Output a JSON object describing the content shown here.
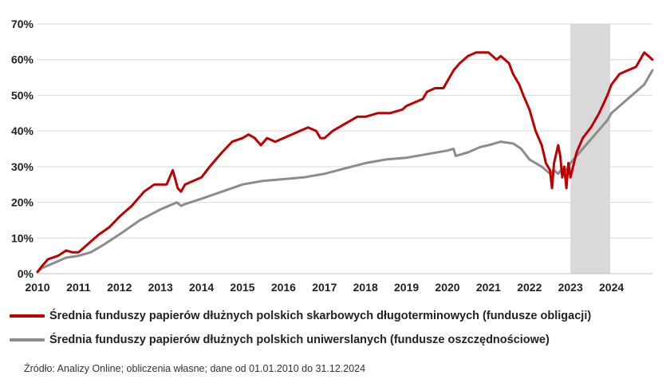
{
  "chart_data": {
    "type": "line",
    "title": "",
    "xlabel": "",
    "ylabel": "",
    "x_ticks": [
      "2010",
      "2011",
      "2012",
      "2013",
      "2014",
      "2015",
      "2016",
      "2017",
      "2018",
      "2019",
      "2020",
      "2021",
      "2022",
      "2023",
      "2024"
    ],
    "y_ticks": [
      "0%",
      "10%",
      "20%",
      "30%",
      "40%",
      "50%",
      "60%",
      "70%"
    ],
    "xlim": [
      2010.0,
      2025.0
    ],
    "ylim": [
      0,
      70
    ],
    "grid": "horizontal",
    "highlight_band": {
      "from": 2023.0,
      "to": 2023.97,
      "color": "#d9d9d9"
    },
    "legend_position": "bottom",
    "series": [
      {
        "name": "Średnia funduszy papierów dłużnych polskich skarbowych długoterminowych (fundusze obligacji)",
        "color": "#c00000",
        "x": [
          2010.0,
          2010.1,
          2010.25,
          2010.5,
          2010.7,
          2010.85,
          2011.0,
          2011.2,
          2011.5,
          2011.75,
          2012.0,
          2012.3,
          2012.6,
          2012.85,
          2013.0,
          2013.15,
          2013.3,
          2013.42,
          2013.5,
          2013.6,
          2013.8,
          2014.0,
          2014.2,
          2014.5,
          2014.75,
          2015.0,
          2015.15,
          2015.3,
          2015.45,
          2015.6,
          2015.8,
          2016.0,
          2016.2,
          2016.4,
          2016.6,
          2016.8,
          2016.9,
          2017.0,
          2017.2,
          2017.5,
          2017.8,
          2018.0,
          2018.3,
          2018.6,
          2018.9,
          2019.0,
          2019.2,
          2019.4,
          2019.5,
          2019.7,
          2019.9,
          2020.0,
          2020.15,
          2020.3,
          2020.5,
          2020.7,
          2020.9,
          2021.0,
          2021.1,
          2021.2,
          2021.3,
          2021.5,
          2021.6,
          2021.75,
          2021.85,
          2022.0,
          2022.15,
          2022.3,
          2022.4,
          2022.5,
          2022.55,
          2022.6,
          2022.7,
          2022.75,
          2022.8,
          2022.85,
          2022.9,
          2022.95,
          2023.0,
          2023.15,
          2023.3,
          2023.5,
          2023.7,
          2023.9,
          2024.0,
          2024.2,
          2024.4,
          2024.6,
          2024.7,
          2024.8,
          2024.9,
          2025.0
        ],
        "values": [
          0.5,
          2,
          4,
          5,
          6.5,
          6,
          6,
          8,
          11,
          13,
          16,
          19,
          23,
          25,
          25,
          25,
          29,
          24,
          23,
          25,
          26,
          27,
          30,
          34,
          37,
          38,
          39,
          38,
          36,
          38,
          37,
          38,
          39,
          40,
          41,
          40,
          38,
          38,
          40,
          42,
          44,
          44,
          45,
          45,
          46,
          47,
          48,
          49,
          51,
          52,
          52,
          54,
          57,
          59,
          61,
          62,
          62,
          62,
          61,
          60,
          61,
          59,
          56,
          53,
          50,
          46,
          40,
          36,
          31,
          29,
          24,
          31,
          36,
          33,
          27,
          30,
          24,
          31,
          27,
          34,
          38,
          41,
          45,
          50,
          53,
          56,
          57,
          58,
          60,
          62,
          61,
          60
        ]
      },
      {
        "name": "Średnia funduszy papierów dłużnych polskich uniwerslanych (fundusze oszczędnościowe)",
        "color": "#8c8c8c",
        "x": [
          2010.0,
          2010.1,
          2010.3,
          2010.5,
          2010.7,
          2011.0,
          2011.3,
          2011.6,
          2012.0,
          2012.5,
          2013.0,
          2013.4,
          2013.5,
          2013.6,
          2014.0,
          2014.5,
          2015.0,
          2015.5,
          2016.0,
          2016.5,
          2017.0,
          2017.5,
          2018.0,
          2018.5,
          2019.0,
          2019.5,
          2020.0,
          2020.15,
          2020.2,
          2020.5,
          2020.8,
          2021.0,
          2021.3,
          2021.6,
          2021.8,
          2022.0,
          2022.15,
          2022.3,
          2022.5,
          2022.6,
          2022.7,
          2022.8,
          2022.9,
          2023.0,
          2023.3,
          2023.6,
          2023.9,
          2024.0,
          2024.3,
          2024.6,
          2024.8,
          2025.0
        ],
        "values": [
          0.5,
          1.5,
          2.5,
          3.5,
          4.5,
          5,
          6,
          8,
          11,
          15,
          18,
          20,
          19,
          19.5,
          21,
          23,
          25,
          26,
          26.5,
          27,
          28,
          29.5,
          31,
          32,
          32.5,
          33.5,
          34.5,
          35,
          33,
          34,
          35.5,
          36,
          37,
          36.5,
          35,
          32,
          31,
          30,
          28,
          29,
          28,
          29.5,
          29,
          31,
          35,
          39,
          43,
          45,
          48,
          51,
          53,
          57
        ]
      }
    ]
  },
  "legend": {
    "item1": "Średnia funduszy papierów dłużnych polskich skarbowych długoterminowych (fundusze obligacji)",
    "item2": "Średnia funduszy papierów dłużnych polskich uniwerslanych (fundusze oszczędnościowe)"
  },
  "source_note": "Źródło: Analizy Online; obliczenia własne; dane od 01.01.2010 do 31.12.2024"
}
